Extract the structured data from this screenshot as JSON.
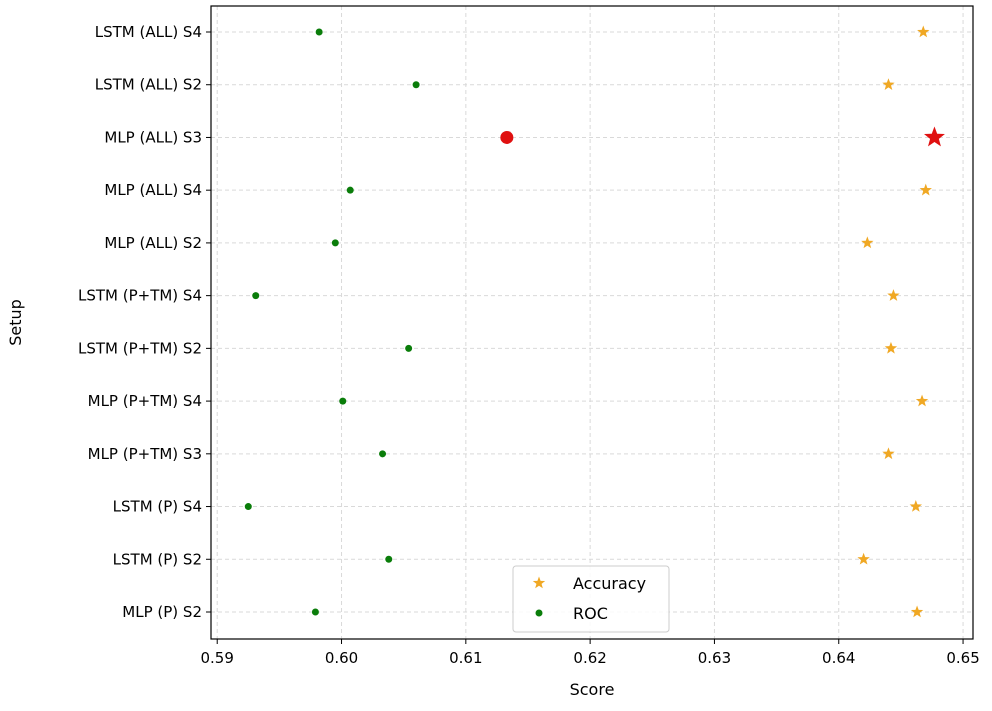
{
  "chart_data": {
    "type": "scatter",
    "xlabel": "Score",
    "ylabel": "Setup",
    "xlim": [
      0.5895,
      0.6508
    ],
    "xticks": [
      0.59,
      0.6,
      0.61,
      0.62,
      0.63,
      0.64,
      0.65
    ],
    "xtick_labels": [
      "0.59",
      "0.60",
      "0.61",
      "0.62",
      "0.63",
      "0.64",
      "0.65"
    ],
    "grid": true,
    "legend_position": "bottom-center",
    "categories": [
      "LSTM (ALL) S4",
      "LSTM (ALL) S2",
      "MLP (ALL) S3",
      "MLP (ALL) S4",
      "MLP (ALL) S2",
      "LSTM (P+TM) S4",
      "LSTM (P+TM) S2",
      "MLP (P+TM) S4",
      "MLP (P+TM) S3",
      "LSTM (P) S4",
      "LSTM (P) S2",
      "MLP (P) S2"
    ],
    "series": [
      {
        "name": "Accuracy",
        "marker": "star",
        "color": "#f0a824",
        "values": [
          0.6468,
          0.644,
          0.6477,
          0.647,
          0.6423,
          0.6444,
          0.6442,
          0.6467,
          0.644,
          0.6462,
          0.642,
          0.6463
        ]
      },
      {
        "name": "ROC",
        "marker": "circle",
        "color": "#0a7d0a",
        "values": [
          0.5982,
          0.606,
          0.6133,
          0.6007,
          0.5995,
          0.5931,
          0.6054,
          0.6001,
          0.6033,
          0.5925,
          0.6038,
          0.5979
        ]
      }
    ],
    "highlight": {
      "category": "MLP (ALL) S3",
      "color": "#e01010"
    }
  }
}
